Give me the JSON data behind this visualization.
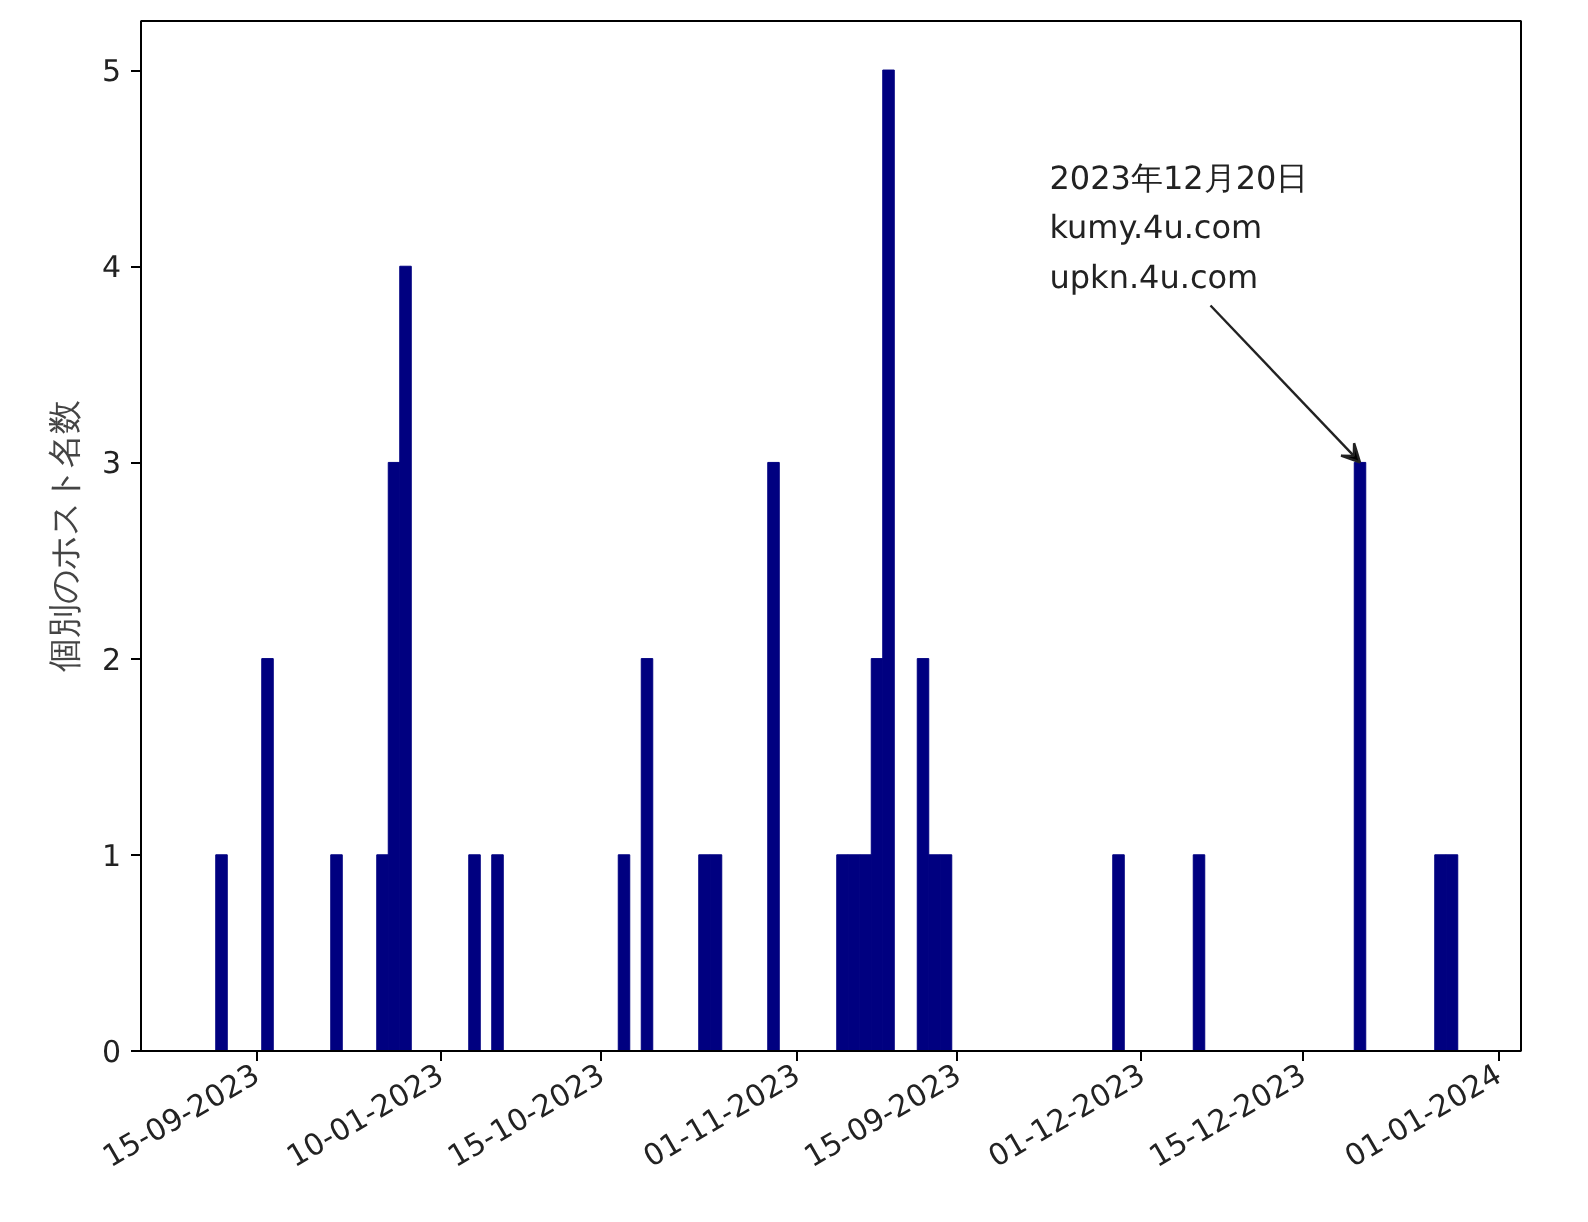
{
  "chart_data": {
    "type": "bar",
    "ylabel": "個別のホスト名数",
    "color": "#000080",
    "x": [
      "2023-09-12",
      "2023-09-16",
      "2023-09-22",
      "2023-09-26",
      "2023-09-27",
      "2023-09-28",
      "2023-10-04",
      "2023-10-06",
      "2023-10-17",
      "2023-10-19",
      "2023-10-24",
      "2023-10-25",
      "2023-10-30",
      "2023-11-05",
      "2023-11-06",
      "2023-11-07",
      "2023-11-08",
      "2023-11-09",
      "2023-11-12",
      "2023-11-13",
      "2023-11-14",
      "2023-11-29",
      "2023-12-06",
      "2023-12-20",
      "2023-12-27",
      "2023-12-28"
    ],
    "values": [
      1,
      2,
      1,
      1,
      3,
      4,
      1,
      1,
      1,
      2,
      1,
      1,
      3,
      1,
      1,
      1,
      2,
      5,
      2,
      1,
      1,
      1,
      1,
      3,
      1,
      1
    ],
    "xlim": [
      "2023-09-05",
      "2024-01-03"
    ],
    "xticks": [
      {
        "value": "2023-09-15",
        "label": "15-09-2023"
      },
      {
        "value": "2023-10-01",
        "label": "10-01-2023"
      },
      {
        "value": "2023-10-15",
        "label": "15-10-2023"
      },
      {
        "value": "2023-11-01",
        "label": "01-11-2023"
      },
      {
        "value": "2023-11-15",
        "label": "15-09-2023"
      },
      {
        "value": "2023-12-01",
        "label": "01-12-2023"
      },
      {
        "value": "2023-12-15",
        "label": "15-12-2023"
      },
      {
        "value": "2024-01-01",
        "label": "01-01-2024"
      }
    ],
    "ylim": [
      0,
      5.25
    ],
    "yticks": [
      0,
      1,
      2,
      3,
      4,
      5
    ],
    "grid": false,
    "annotations": [
      {
        "text": "2023年12月20日\nkumy.4u.com\nupkn.4u.com",
        "x": "2023-12-20",
        "y": 3
      }
    ]
  }
}
